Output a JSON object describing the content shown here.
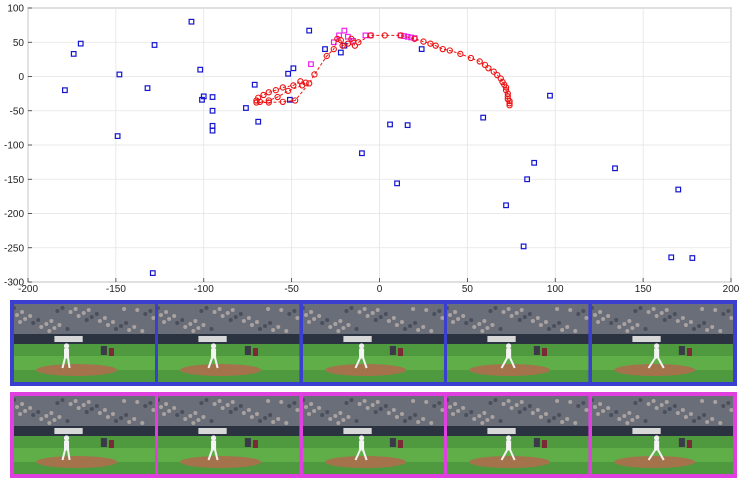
{
  "chart_data": {
    "type": "scatter",
    "title": "",
    "xlabel": "",
    "ylabel": "",
    "xlim": [
      -200,
      200
    ],
    "ylim": [
      -300,
      100
    ],
    "xticks": [
      -200,
      -150,
      -100,
      -50,
      0,
      50,
      100,
      150,
      200
    ],
    "yticks": [
      100,
      50,
      0,
      -50,
      -100,
      -150,
      -200,
      -250,
      -300
    ],
    "grid": true,
    "series": [
      {
        "marker": "square",
        "color": "#1515d0",
        "points": [
          [
            -179,
            -20
          ],
          [
            -174,
            33
          ],
          [
            -170,
            48
          ],
          [
            -148,
            3
          ],
          [
            -149,
            -87
          ],
          [
            -132,
            -17
          ],
          [
            -128,
            46
          ],
          [
            -129,
            -287
          ],
          [
            -107,
            80
          ],
          [
            -102,
            10
          ],
          [
            -101,
            -34
          ],
          [
            -100,
            -29
          ],
          [
            -95,
            -30
          ],
          [
            -95,
            -50
          ],
          [
            -95,
            -72
          ],
          [
            -95,
            -79
          ],
          [
            -76,
            -46
          ],
          [
            -71,
            -12
          ],
          [
            -69,
            -66
          ],
          [
            -51,
            -34
          ],
          [
            -52,
            4
          ],
          [
            -49,
            12
          ],
          [
            -40,
            67
          ],
          [
            -31,
            40
          ],
          [
            -22,
            35
          ],
          [
            -20,
            45
          ],
          [
            -10,
            -112
          ],
          [
            6,
            -70
          ],
          [
            10,
            -156
          ],
          [
            16,
            -71
          ],
          [
            24,
            40
          ],
          [
            59,
            -60
          ],
          [
            72,
            -188
          ],
          [
            82,
            -248
          ],
          [
            84,
            -150
          ],
          [
            88,
            -126
          ],
          [
            97,
            -28
          ],
          [
            134,
            -134
          ],
          [
            166,
            -264
          ],
          [
            170,
            -165
          ],
          [
            178,
            -265
          ]
        ]
      },
      {
        "marker": "square",
        "color": "#ee22ee",
        "points": [
          [
            -39,
            18
          ],
          [
            -26,
            50
          ],
          [
            -23,
            60
          ],
          [
            -20,
            67
          ],
          [
            -18,
            58
          ],
          [
            -15,
            52
          ],
          [
            -8,
            60
          ],
          [
            -5,
            60
          ],
          [
            12,
            60
          ],
          [
            14,
            59
          ],
          [
            16,
            58
          ],
          [
            18,
            57
          ],
          [
            20,
            56
          ]
        ]
      },
      {
        "marker": "circle-line",
        "color": "#ee1111",
        "points": [
          [
            -70,
            -35
          ],
          [
            -69,
            -31
          ],
          [
            -66,
            -27
          ],
          [
            -63,
            -23
          ],
          [
            -59,
            -20
          ],
          [
            -55,
            -16
          ],
          [
            -49,
            -13
          ],
          [
            -45,
            -7
          ],
          [
            -42,
            -9
          ],
          [
            -44,
            -13
          ],
          [
            -52,
            -21
          ],
          [
            -58,
            -30
          ],
          [
            -63,
            -35
          ],
          [
            -68,
            -37
          ],
          [
            -70,
            -38
          ],
          [
            -63,
            -38
          ],
          [
            -55,
            -37
          ],
          [
            -48,
            -35
          ],
          [
            -40,
            -10
          ],
          [
            -37,
            3
          ],
          [
            -30,
            30
          ],
          [
            -26,
            40
          ],
          [
            -24,
            55
          ],
          [
            -22,
            53
          ],
          [
            -21,
            45
          ],
          [
            -18,
            48
          ],
          [
            -14,
            45
          ],
          [
            -16,
            55
          ],
          [
            -12,
            50
          ],
          [
            -5,
            60
          ],
          [
            3,
            60
          ],
          [
            12,
            60
          ],
          [
            20,
            55
          ],
          [
            25,
            51
          ],
          [
            29,
            48
          ],
          [
            32,
            45
          ],
          [
            36,
            40
          ],
          [
            40,
            38
          ],
          [
            46,
            33
          ],
          [
            52,
            27
          ],
          [
            57,
            22
          ],
          [
            60,
            17
          ],
          [
            62,
            12
          ],
          [
            65,
            7
          ],
          [
            67,
            2
          ],
          [
            69,
            -3
          ],
          [
            70,
            -8
          ],
          [
            71,
            -12
          ],
          [
            72,
            -16
          ],
          [
            72,
            -20
          ],
          [
            73,
            -25
          ],
          [
            73,
            -29
          ],
          [
            73,
            -33
          ],
          [
            74,
            -36
          ],
          [
            74,
            -39
          ],
          [
            74,
            -42
          ]
        ]
      }
    ]
  },
  "strips": [
    {
      "name": "blue",
      "color": "#3a3fd0",
      "frames": 5
    },
    {
      "name": "magenta",
      "color": "#e040e0",
      "frames": 5
    }
  ]
}
